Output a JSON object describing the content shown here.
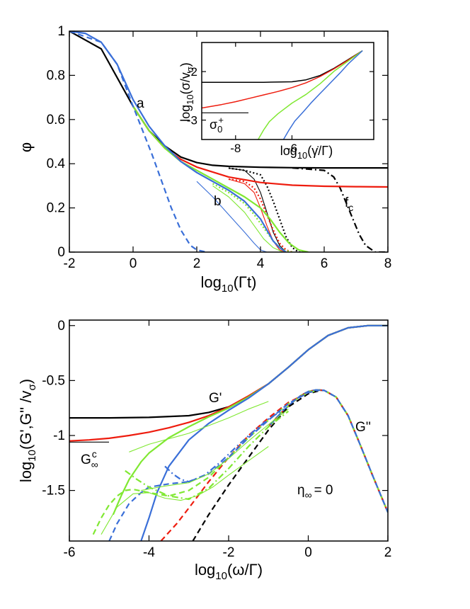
{
  "colors": {
    "black": "#000000",
    "red": "#ee1c0e",
    "green": "#80e832",
    "blue": "#3a6fd8"
  },
  "chart_data": [
    {
      "type": "line",
      "title": "",
      "xlabel": "log10(Γt)",
      "ylabel": "φ",
      "xlim": [
        -2,
        8
      ],
      "ylim": [
        0,
        1
      ],
      "xticks": [
        "-2",
        "0",
        "2",
        "4",
        "6",
        "8"
      ],
      "yticks": [
        "0",
        "0.2",
        "0.4",
        "0.6",
        "0.8",
        "1"
      ],
      "annotations": {
        "a": "a",
        "b": "b",
        "fc": "f",
        "fc_sub": "c"
      },
      "series": [
        {
          "name": "black solid (γ̇=0)",
          "color": "black",
          "style": "solid",
          "x": [
            -2,
            -1,
            0,
            0.5,
            1,
            1.5,
            2,
            2.5,
            3,
            4,
            5,
            6,
            7,
            8
          ],
          "y": [
            1.0,
            0.92,
            0.66,
            0.55,
            0.48,
            0.43,
            0.405,
            0.393,
            0.388,
            0.384,
            0.382,
            0.381,
            0.381,
            0.381
          ]
        },
        {
          "name": "black dash-dot",
          "color": "black",
          "style": "dashdot",
          "x": [
            5,
            6,
            6.3,
            6.5,
            6.7,
            6.9,
            7.1,
            7.3,
            7.6,
            8
          ],
          "y": [
            0.381,
            0.37,
            0.34,
            0.29,
            0.22,
            0.15,
            0.08,
            0.03,
            0.0,
            0.0
          ]
        },
        {
          "name": "black dotted",
          "color": "black",
          "style": "dotted",
          "x": [
            3,
            3.5,
            4,
            4.2,
            4.4,
            4.6,
            4.8,
            5.0,
            5.2,
            5.4
          ],
          "y": [
            0.38,
            0.37,
            0.35,
            0.3,
            0.23,
            0.15,
            0.07,
            0.02,
            0.0,
            0.0
          ]
        },
        {
          "name": "black thin",
          "color": "black",
          "style": "thin",
          "x": [
            3,
            3.5,
            3.8,
            4.0,
            4.2,
            4.4,
            4.6,
            4.8,
            5.0
          ],
          "y": [
            0.38,
            0.37,
            0.33,
            0.27,
            0.18,
            0.09,
            0.03,
            0.0,
            0.0
          ]
        },
        {
          "name": "red solid",
          "color": "red",
          "style": "solid",
          "x": [
            0,
            0.5,
            1,
            1.5,
            2,
            3,
            4,
            5,
            6,
            7,
            8
          ],
          "y": [
            0.66,
            0.55,
            0.47,
            0.42,
            0.385,
            0.34,
            0.315,
            0.303,
            0.298,
            0.296,
            0.295
          ]
        },
        {
          "name": "red dotted",
          "color": "red",
          "style": "dotted",
          "x": [
            3,
            3.5,
            3.8,
            4.0,
            4.2,
            4.4,
            4.6,
            4.8,
            5.0
          ],
          "y": [
            0.33,
            0.32,
            0.29,
            0.24,
            0.17,
            0.1,
            0.04,
            0.01,
            0.0
          ]
        },
        {
          "name": "red thin",
          "color": "red",
          "style": "thin",
          "x": [
            3,
            3.5,
            3.8,
            4.0,
            4.2,
            4.4,
            4.6,
            4.8
          ],
          "y": [
            0.33,
            0.31,
            0.27,
            0.2,
            0.12,
            0.05,
            0.01,
            0.0
          ]
        },
        {
          "name": "green solid",
          "color": "green",
          "style": "solid",
          "x": [
            0,
            0.5,
            1,
            1.5,
            2,
            2.5,
            3,
            3.5,
            4,
            4.3,
            4.6,
            4.9,
            5.2,
            5.5
          ],
          "y": [
            0.66,
            0.55,
            0.47,
            0.41,
            0.37,
            0.33,
            0.29,
            0.25,
            0.2,
            0.15,
            0.09,
            0.04,
            0.01,
            0.0
          ]
        },
        {
          "name": "green dotted",
          "color": "green",
          "style": "dotted",
          "x": [
            2.5,
            3,
            3.5,
            3.8,
            4.1,
            4.4,
            4.7,
            5.0
          ],
          "y": [
            0.31,
            0.27,
            0.22,
            0.17,
            0.11,
            0.05,
            0.01,
            0.0
          ]
        },
        {
          "name": "green thin",
          "color": "green",
          "style": "thin",
          "x": [
            2.5,
            3,
            3.5,
            3.8,
            4.1,
            4.4,
            4.7
          ],
          "y": [
            0.3,
            0.25,
            0.18,
            0.12,
            0.06,
            0.02,
            0.0
          ]
        },
        {
          "name": "blue solid",
          "color": "blue",
          "style": "solid",
          "x": [
            -2,
            -1.5,
            -1,
            -0.5,
            0,
            0.5,
            1,
            1.5,
            2,
            2.5,
            3,
            3.5,
            4,
            4.2,
            4.4,
            4.6,
            4.8
          ],
          "y": [
            1.0,
            0.99,
            0.95,
            0.85,
            0.69,
            0.57,
            0.48,
            0.41,
            0.36,
            0.32,
            0.28,
            0.23,
            0.15,
            0.1,
            0.05,
            0.02,
            0.0
          ]
        },
        {
          "name": "blue thin",
          "color": "blue",
          "style": "thin",
          "x": [
            2,
            2.5,
            3,
            3.5,
            3.8,
            4.0,
            4.2
          ],
          "y": [
            0.32,
            0.25,
            0.17,
            0.09,
            0.04,
            0.01,
            0.0
          ]
        },
        {
          "name": "blue dashed",
          "color": "blue",
          "style": "dashed",
          "x": [
            -2,
            -1,
            -0.5,
            0,
            0.3,
            0.6,
            0.9,
            1.2,
            1.5,
            1.8,
            2,
            2.3
          ],
          "y": [
            1.0,
            0.95,
            0.85,
            0.66,
            0.55,
            0.44,
            0.32,
            0.2,
            0.1,
            0.03,
            0.01,
            0.0
          ]
        }
      ],
      "inset": {
        "type": "line",
        "xlabel": "log10(γ̇/Γ)",
        "ylabel": "log10(σ/vσ)",
        "xlim": [
          -9.2,
          -3.1
        ],
        "ylim": [
          -3.4,
          -1.4
        ],
        "xticks": [
          "-8",
          "-6"
        ],
        "yticks": [
          "-2",
          "-3"
        ],
        "annotation": {
          "sigma": "σ",
          "sub": "0",
          "sup": "+"
        },
        "sigma0_level": -2.85,
        "series": [
          {
            "name": "black",
            "color": "black",
            "x": [
              -9.2,
              -8,
              -7,
              -6,
              -5.5,
              -5,
              -4.5,
              -4,
              -3.5
            ],
            "y": [
              -2.22,
              -2.22,
              -2.22,
              -2.21,
              -2.17,
              -2.08,
              -1.93,
              -1.75,
              -1.57
            ]
          },
          {
            "name": "red",
            "color": "red",
            "x": [
              -9.2,
              -8.5,
              -8,
              -7.5,
              -7,
              -6.5,
              -6,
              -5.5,
              -5,
              -4.5,
              -4,
              -3.5
            ],
            "y": [
              -2.75,
              -2.68,
              -2.62,
              -2.55,
              -2.48,
              -2.41,
              -2.33,
              -2.23,
              -2.1,
              -1.94,
              -1.76,
              -1.57
            ]
          },
          {
            "name": "green",
            "color": "green",
            "x": [
              -7.2,
              -7,
              -6.8,
              -6.5,
              -6,
              -5.5,
              -5,
              -4.5,
              -4,
              -3.5
            ],
            "y": [
              -3.4,
              -3.2,
              -3.03,
              -2.87,
              -2.65,
              -2.47,
              -2.25,
              -1.99,
              -1.78,
              -1.57
            ]
          },
          {
            "name": "blue",
            "color": "blue",
            "x": [
              -6.3,
              -6.1,
              -5.9,
              -5.6,
              -5.3,
              -5,
              -4.7,
              -4.3,
              -4,
              -3.5
            ],
            "y": [
              -3.4,
              -3.2,
              -3.02,
              -2.83,
              -2.63,
              -2.45,
              -2.27,
              -2.03,
              -1.84,
              -1.57
            ]
          }
        ]
      }
    },
    {
      "type": "line",
      "title": "",
      "xlabel": "log10(ω/Γ)",
      "ylabel": "log10(G',G'' /vσ)",
      "xlim": [
        -6,
        2
      ],
      "ylim": [
        -1.96,
        0.05
      ],
      "xticks": [
        "-6",
        "-4",
        "-2",
        "0",
        "2"
      ],
      "yticks": [
        "0",
        "-0.5",
        "-1",
        "-1.5"
      ],
      "annotations": {
        "Gp": "G'",
        "Gpp": "G''",
        "Ginf": "G",
        "Ginf_sub": "∞",
        "Ginf_sup": "c",
        "eta": "η",
        "eta_sub": "∞",
        "eta_val": "= 0"
      },
      "Ginf_c_level": -1.06,
      "series": [
        {
          "name": "G' black",
          "color": "black",
          "style": "solid",
          "x": [
            -6,
            -5,
            -4,
            -3,
            -2.5,
            -2,
            -1.5,
            -1,
            -0.5,
            0,
            0.5,
            1,
            1.5,
            2
          ],
          "y": [
            -0.84,
            -0.84,
            -0.835,
            -0.82,
            -0.79,
            -0.74,
            -0.65,
            -0.53,
            -0.38,
            -0.22,
            -0.09,
            -0.02,
            0.0,
            0.0
          ]
        },
        {
          "name": "G' red",
          "color": "red",
          "style": "solid",
          "x": [
            -6,
            -5.5,
            -5,
            -4.5,
            -4,
            -3.5,
            -3,
            -2.5,
            -2,
            -1.5,
            -1,
            -0.5,
            0,
            0.5,
            1,
            1.5,
            2
          ],
          "y": [
            -1.05,
            -1.04,
            -1.025,
            -1.0,
            -0.97,
            -0.93,
            -0.88,
            -0.82,
            -0.74,
            -0.64,
            -0.53,
            -0.38,
            -0.22,
            -0.09,
            -0.02,
            0.0,
            0.0
          ]
        },
        {
          "name": "G' green",
          "color": "green",
          "style": "solid",
          "x": [
            -4.9,
            -4.7,
            -4.5,
            -4.2,
            -4,
            -3.5,
            -3,
            -2.5,
            -2,
            -1.5,
            -1,
            -0.5,
            0,
            0.5,
            1,
            1.5,
            2
          ],
          "y": [
            -1.72,
            -1.55,
            -1.4,
            -1.24,
            -1.16,
            -1.02,
            -0.92,
            -0.83,
            -0.75,
            -0.65,
            -0.53,
            -0.38,
            -0.22,
            -0.09,
            -0.02,
            0.0,
            0.0
          ]
        },
        {
          "name": "G' blue",
          "color": "blue",
          "style": "solid",
          "x": [
            -4.2,
            -4,
            -3.8,
            -3.5,
            -3,
            -2.5,
            -2,
            -1.5,
            -1,
            -0.5,
            0,
            0.5,
            1,
            1.5,
            2
          ],
          "y": [
            -1.96,
            -1.75,
            -1.52,
            -1.28,
            -1.04,
            -0.89,
            -0.77,
            -0.66,
            -0.53,
            -0.38,
            -0.22,
            -0.09,
            -0.02,
            0.0,
            0.0
          ]
        },
        {
          "name": "G'' (all, dashed)",
          "color": "multi",
          "style": "dashed",
          "x": [
            -1,
            -0.7,
            -0.4,
            -0.2,
            0,
            0.2,
            0.4,
            0.7,
            1,
            1.3,
            1.6,
            2
          ],
          "y": [
            -0.92,
            -0.8,
            -0.7,
            -0.64,
            -0.6,
            -0.585,
            -0.59,
            -0.65,
            -0.82,
            -1.08,
            -1.35,
            -1.7
          ]
        },
        {
          "name": "G'' black dashed",
          "color": "black",
          "style": "dashed",
          "x": [
            -2.9,
            -2.5,
            -2,
            -1.5,
            -1,
            -0.5,
            0,
            0.3
          ],
          "y": [
            -1.96,
            -1.72,
            -1.45,
            -1.2,
            -0.95,
            -0.74,
            -0.62,
            -0.59
          ]
        },
        {
          "name": "G'' red dashed",
          "color": "red",
          "style": "dashed",
          "x": [
            -3.7,
            -3.3,
            -3,
            -2.5,
            -2,
            -1.5,
            -1,
            -0.5,
            0,
            0.3
          ],
          "y": [
            -1.96,
            -1.8,
            -1.66,
            -1.42,
            -1.2,
            -1.0,
            -0.84,
            -0.7,
            -0.61,
            -0.585
          ]
        },
        {
          "name": "G'' green dashed",
          "color": "green",
          "style": "dashed",
          "x": [
            -5.4,
            -5.2,
            -5,
            -4.8,
            -4.6,
            -4.4,
            -4,
            -3.5,
            -3,
            -2.5,
            -2,
            -1.5,
            -1,
            -0.5,
            0,
            0.3
          ],
          "y": [
            -1.9,
            -1.75,
            -1.63,
            -1.55,
            -1.5,
            -1.49,
            -1.52,
            -1.55,
            -1.5,
            -1.38,
            -1.2,
            -1.02,
            -0.86,
            -0.71,
            -0.61,
            -0.585
          ]
        },
        {
          "name": "G'' blue dashed",
          "color": "blue",
          "style": "dashed",
          "x": [
            -5.0,
            -4.8,
            -4.5,
            -4.2,
            -4,
            -3.5,
            -3,
            -2.5,
            -2,
            -1.5,
            -1,
            -0.5,
            0,
            0.3
          ],
          "y": [
            -1.96,
            -1.8,
            -1.62,
            -1.52,
            -1.47,
            -1.44,
            -1.42,
            -1.35,
            -1.2,
            -1.02,
            -0.86,
            -0.71,
            -0.61,
            -0.585
          ]
        },
        {
          "name": "G'' green dash-dot",
          "color": "green",
          "style": "dashdot",
          "x": [
            -4.6,
            -4.3,
            -4,
            -3.5,
            -3,
            -2.5,
            -2,
            -1.5,
            -1,
            -0.5
          ],
          "y": [
            -1.32,
            -1.4,
            -1.47,
            -1.55,
            -1.58,
            -1.48,
            -1.3,
            -1.1,
            -0.92,
            -0.78
          ]
        },
        {
          "name": "G'' blue dash-dot",
          "color": "blue",
          "style": "dashdot",
          "x": [
            -3.6,
            -3.4,
            -3.2,
            -3,
            -2.6,
            -2.2,
            -1.8,
            -1.4,
            -1,
            -0.6
          ],
          "y": [
            -1.28,
            -1.35,
            -1.4,
            -1.42,
            -1.36,
            -1.24,
            -1.1,
            -0.97,
            -0.85,
            -0.76
          ]
        },
        {
          "name": "green thin 1",
          "color": "green",
          "style": "thin",
          "x": [
            -5.2,
            -4.8,
            -4.4,
            -4,
            -3.6,
            -3.2,
            -2.8,
            -2.4,
            -2,
            -1.5,
            -1
          ],
          "y": [
            -1.9,
            -1.65,
            -1.53,
            -1.52,
            -1.57,
            -1.59,
            -1.55,
            -1.47,
            -1.36,
            -1.23,
            -1.1
          ]
        },
        {
          "name": "green thin 2",
          "color": "green",
          "style": "thin",
          "x": [
            -4.5,
            -4,
            -3.5,
            -3,
            -2.5,
            -2,
            -1.5,
            -1
          ],
          "y": [
            -1.15,
            -1.08,
            -1.03,
            -0.98,
            -0.91,
            -0.84,
            -0.76,
            -0.69
          ]
        },
        {
          "name": "green thin 3",
          "color": "green",
          "style": "thin",
          "x": [
            -4.2,
            -3.6,
            -3,
            -2.5,
            -2,
            -1.5,
            -1,
            -0.5
          ],
          "y": [
            -1.5,
            -1.46,
            -1.43,
            -1.35,
            -1.21,
            -1.05,
            -0.9,
            -0.76
          ]
        }
      ]
    }
  ]
}
